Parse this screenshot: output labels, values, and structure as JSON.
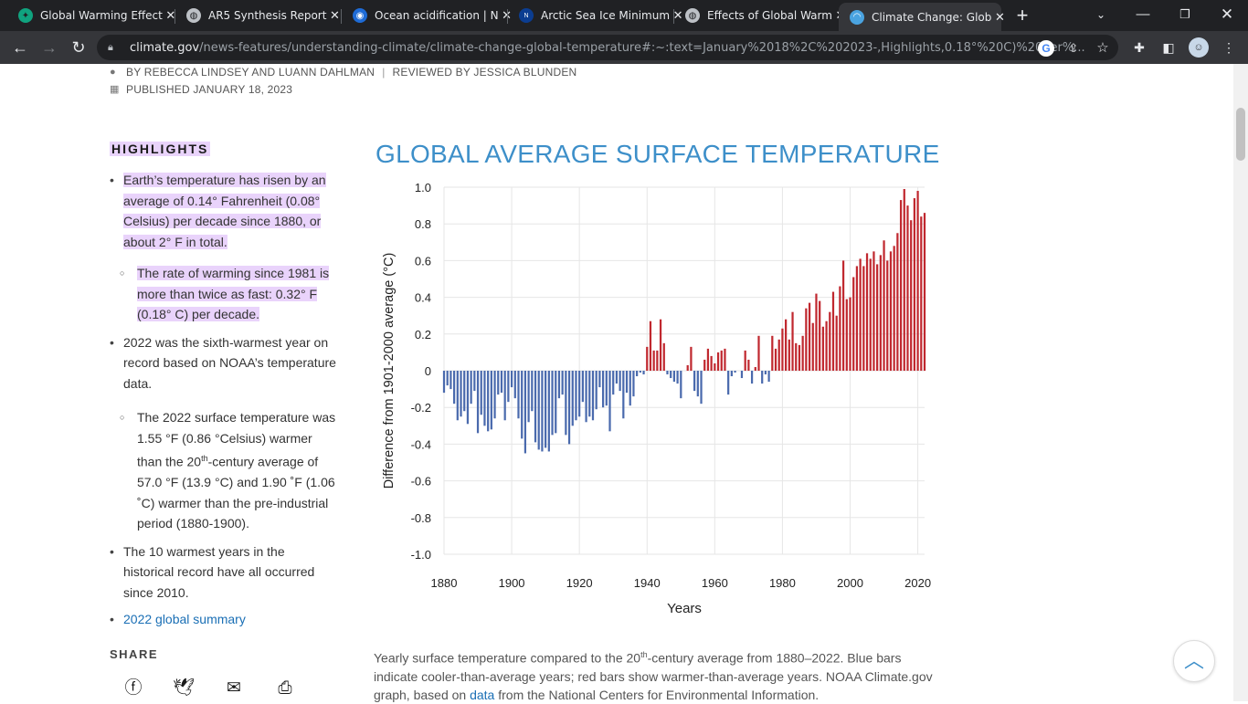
{
  "browser": {
    "tabs": [
      {
        "title": "Global Warming Effect",
        "icon": "chatgpt-icon",
        "icon_color": "#10a37f"
      },
      {
        "title": "AR5 Synthesis Report",
        "icon": "globe-icon",
        "icon_color": "#bdc1c6"
      },
      {
        "title": "Ocean acidification | N",
        "icon": "noaa-icon",
        "icon_color": "#1e6bd6"
      },
      {
        "title": "Arctic Sea Ice Minimum",
        "icon": "nasa-icon",
        "icon_color": "#0b3d91"
      },
      {
        "title": "Effects of Global Warm",
        "icon": "globe-icon",
        "icon_color": "#bdc1c6"
      },
      {
        "title": "Climate Change: Glob",
        "icon": "climate-gov-icon",
        "icon_color": "#4aa3e0"
      }
    ],
    "url_domain": "climate.gov",
    "url_path": "/news-features/understanding-climate/climate-change-global-temperature#:~:text=January%2018%2C%202023-,Highlights,0.18°%20C)%20per%..."
  },
  "article": {
    "byline": "BY REBECCA LINDSEY AND LUANN DAHLMAN",
    "reviewed": "REVIEWED BY JESSICA BLUNDEN",
    "published": "PUBLISHED JANUARY 18, 2023"
  },
  "highlights": {
    "title": "HIGHLIGHTS",
    "items": [
      "Earth’s temperature has risen by an average of 0.14° Fahrenheit (0.08° Celsius) per decade since 1880, or about 2° F in total.",
      "The rate of warming since 1981 is more than twice as fast: 0.32° F (0.18° C) per decade.",
      "2022 was the sixth-warmest year on record based on NOAA’s temperature data.",
      "The 2022 surface temperature was 1.55 °F (0.86 °Celsius) warmer than the 20",
      "th",
      "-century average of 57.0 °F (13.9 °C) and 1.90 ˚F (1.06 ˚C) warmer than the pre-industrial period (1880-1900).",
      "The 10 warmest years in the historical record have all occurred since 2010.",
      "2022 global summary"
    ]
  },
  "share": {
    "title": "SHARE"
  },
  "caption": {
    "part1": "Yearly surface temperature compared to the 20",
    "sup": "th",
    "part2": "-century average from 1880–2022. Blue bars indicate cooler-than-average years; red bars show warmer-than-average years. NOAA Climate.gov graph, based on ",
    "link": "data",
    "part3": " from the National Centers for Environmental Information."
  },
  "chart_data": {
    "type": "bar",
    "title": "GLOBAL AVERAGE SURFACE TEMPERATURE",
    "xlabel": "Years",
    "ylabel": "Difference from 1901-2000 average (°C)",
    "xlim": [
      1880,
      2022
    ],
    "ylim": [
      -1.0,
      1.0
    ],
    "x_ticks": [
      "1880",
      "1900",
      "1920",
      "1940",
      "1960",
      "1980",
      "2000",
      "2020"
    ],
    "y_ticks": [
      "1.0",
      "0.8",
      "0.6",
      "0.4",
      "0.2",
      "0",
      "-0.2",
      "-0.4",
      "-0.6",
      "-0.8",
      "-1.0"
    ],
    "colors": {
      "positive": "#c0282f",
      "negative": "#4a6aad",
      "title": "#3d8fc9"
    },
    "grid": true,
    "x": [
      1880,
      1881,
      1882,
      1883,
      1884,
      1885,
      1886,
      1887,
      1888,
      1889,
      1890,
      1891,
      1892,
      1893,
      1894,
      1895,
      1896,
      1897,
      1898,
      1899,
      1900,
      1901,
      1902,
      1903,
      1904,
      1905,
      1906,
      1907,
      1908,
      1909,
      1910,
      1911,
      1912,
      1913,
      1914,
      1915,
      1916,
      1917,
      1918,
      1919,
      1920,
      1921,
      1922,
      1923,
      1924,
      1925,
      1926,
      1927,
      1928,
      1929,
      1930,
      1931,
      1932,
      1933,
      1934,
      1935,
      1936,
      1937,
      1938,
      1939,
      1940,
      1941,
      1942,
      1943,
      1944,
      1945,
      1946,
      1947,
      1948,
      1949,
      1950,
      1951,
      1952,
      1953,
      1954,
      1955,
      1956,
      1957,
      1958,
      1959,
      1960,
      1961,
      1962,
      1963,
      1964,
      1965,
      1966,
      1967,
      1968,
      1969,
      1970,
      1971,
      1972,
      1973,
      1974,
      1975,
      1976,
      1977,
      1978,
      1979,
      1980,
      1981,
      1982,
      1983,
      1984,
      1985,
      1986,
      1987,
      1988,
      1989,
      1990,
      1991,
      1992,
      1993,
      1994,
      1995,
      1996,
      1997,
      1998,
      1999,
      2000,
      2001,
      2002,
      2003,
      2004,
      2005,
      2006,
      2007,
      2008,
      2009,
      2010,
      2011,
      2012,
      2013,
      2014,
      2015,
      2016,
      2017,
      2018,
      2019,
      2020,
      2021,
      2022
    ],
    "values": [
      -0.12,
      -0.08,
      -0.1,
      -0.18,
      -0.27,
      -0.25,
      -0.22,
      -0.29,
      -0.18,
      -0.11,
      -0.34,
      -0.24,
      -0.3,
      -0.33,
      -0.32,
      -0.26,
      -0.13,
      -0.12,
      -0.27,
      -0.17,
      -0.09,
      -0.15,
      -0.26,
      -0.37,
      -0.45,
      -0.28,
      -0.22,
      -0.39,
      -0.43,
      -0.44,
      -0.42,
      -0.44,
      -0.35,
      -0.34,
      -0.15,
      -0.13,
      -0.35,
      -0.4,
      -0.3,
      -0.27,
      -0.25,
      -0.17,
      -0.28,
      -0.25,
      -0.27,
      -0.21,
      -0.09,
      -0.2,
      -0.19,
      -0.33,
      -0.13,
      -0.07,
      -0.11,
      -0.26,
      -0.12,
      -0.19,
      -0.14,
      -0.03,
      -0.01,
      -0.02,
      0.13,
      0.27,
      0.11,
      0.11,
      0.28,
      0.15,
      -0.02,
      -0.04,
      -0.06,
      -0.07,
      -0.15,
      0.0,
      0.03,
      0.13,
      -0.11,
      -0.14,
      -0.18,
      0.06,
      0.12,
      0.08,
      0.04,
      0.1,
      0.11,
      0.12,
      -0.13,
      -0.03,
      -0.01,
      0.0,
      -0.04,
      0.11,
      0.06,
      -0.07,
      0.02,
      0.19,
      -0.07,
      -0.02,
      -0.06,
      0.19,
      0.12,
      0.17,
      0.23,
      0.28,
      0.17,
      0.32,
      0.15,
      0.14,
      0.19,
      0.34,
      0.37,
      0.26,
      0.42,
      0.38,
      0.24,
      0.27,
      0.32,
      0.43,
      0.3,
      0.46,
      0.6,
      0.39,
      0.4,
      0.51,
      0.57,
      0.61,
      0.57,
      0.64,
      0.61,
      0.65,
      0.58,
      0.63,
      0.71,
      0.6,
      0.65,
      0.68,
      0.75,
      0.93,
      0.99,
      0.9,
      0.82,
      0.94,
      0.98,
      0.84,
      0.86
    ]
  }
}
